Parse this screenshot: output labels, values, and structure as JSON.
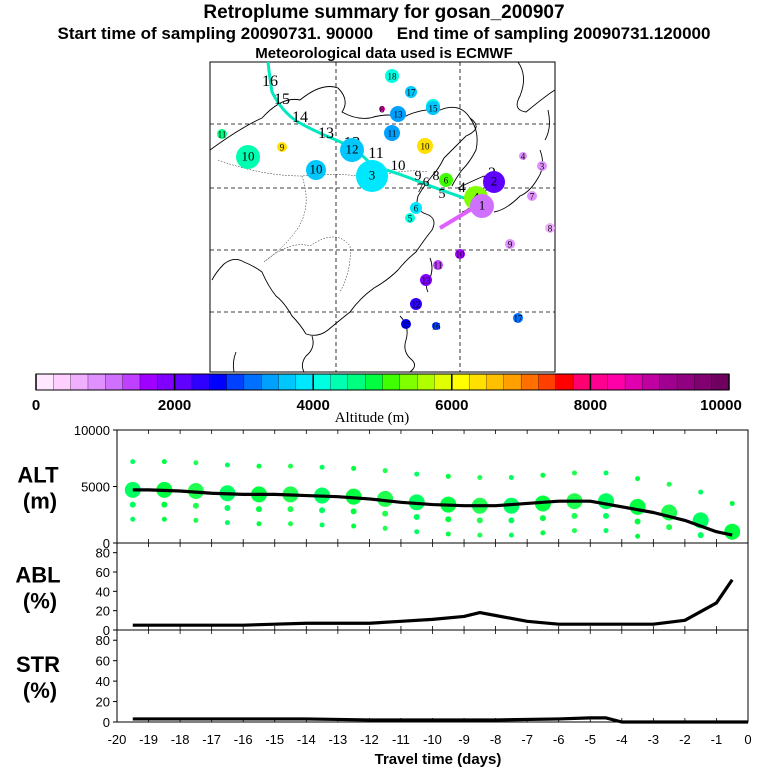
{
  "header": {
    "title": "Retroplume summary for gosan_200907",
    "line2_start": "Start time of sampling 20090731. 90000",
    "line2_end": "End time of sampling 20090731.120000",
    "line3": "Meteorological data used is ECMWF"
  },
  "colorbar": {
    "label": "Altitude (m)",
    "ticks": [
      "0",
      "2000",
      "4000",
      "6000",
      "8000",
      "10000"
    ],
    "colors": [
      "#ffe8ff",
      "#ffd0ff",
      "#f0b0ff",
      "#e090ff",
      "#d070ff",
      "#c040ff",
      "#a000ff",
      "#8000ff",
      "#6000ff",
      "#3000ff",
      "#0000ff",
      "#0040ff",
      "#0070ff",
      "#00a0ff",
      "#00c8ff",
      "#00e8ff",
      "#00ffe0",
      "#00ffb0",
      "#00ff80",
      "#00ff40",
      "#40ff00",
      "#80ff00",
      "#b0ff00",
      "#e0ff00",
      "#ffff00",
      "#ffe000",
      "#ffc000",
      "#ffa000",
      "#ff7000",
      "#ff4000",
      "#ff0000",
      "#ff0070",
      "#ff0090",
      "#ff00a8",
      "#e000b0",
      "#c000a0",
      "#a00090",
      "#900080",
      "#800070",
      "#700060"
    ]
  },
  "map": {
    "trajectory_labels": [
      "1",
      "2",
      "3",
      "4",
      "5",
      "6",
      "7",
      "8",
      "9",
      "10",
      "11",
      "12",
      "13",
      "14",
      "15",
      "16"
    ],
    "clusters": [
      {
        "label": "16",
        "altitude": 4200
      },
      {
        "label": "18",
        "altitude": 4000
      },
      {
        "label": "17",
        "altitude": 3600
      },
      {
        "label": "15",
        "altitude": 3500
      },
      {
        "label": "13",
        "altitude": 3300
      },
      {
        "label": "8",
        "altitude": 8500
      },
      {
        "label": "11",
        "altitude": 3400
      },
      {
        "label": "10",
        "altitude": 6300
      },
      {
        "label": "9",
        "altitude": 6400
      },
      {
        "label": "11",
        "altitude": 4500
      },
      {
        "label": "10",
        "altitude": 3500
      },
      {
        "label": "12",
        "altitude": 3700
      },
      {
        "label": "10",
        "altitude": 4400
      },
      {
        "label": "3",
        "altitude": 3800
      },
      {
        "label": "6",
        "altitude": 5200
      },
      {
        "label": "6",
        "altitude": 3900
      },
      {
        "label": "5",
        "altitude": 4200
      },
      {
        "label": "4",
        "altitude": 5400
      },
      {
        "label": "2",
        "altitude": 2000
      },
      {
        "label": "1",
        "altitude": 1200
      },
      {
        "label": "4",
        "altitude": 900
      },
      {
        "label": "3",
        "altitude": 800
      },
      {
        "label": "7",
        "altitude": 800
      },
      {
        "label": "9",
        "altitude": 800
      },
      {
        "label": "8",
        "altitude": 600
      },
      {
        "label": "10",
        "altitude": 1500
      },
      {
        "label": "11",
        "altitude": 1400
      },
      {
        "label": "13",
        "altitude": 1800
      },
      {
        "label": "12",
        "altitude": 2300
      },
      {
        "label": "15",
        "altitude": 2700
      },
      {
        "label": "16",
        "altitude": 2900
      },
      {
        "label": "17",
        "altitude": 3100
      }
    ]
  },
  "chart_data": [
    {
      "type": "line",
      "panel": "ALT",
      "ylabel": "ALT\n(m)",
      "ylim": [
        0,
        10000
      ],
      "yticks": [
        "10000",
        "5000",
        "0"
      ],
      "x": [
        -19.5,
        -19,
        -18,
        -17,
        -16,
        -15,
        -14,
        -13,
        -12,
        -11,
        -10,
        -9,
        -8,
        -7,
        -6,
        -5,
        -4,
        -3,
        -2,
        -1,
        -0.5
      ],
      "series": [
        {
          "name": "mean altitude",
          "values": [
            4700,
            4700,
            4600,
            4400,
            4300,
            4300,
            4200,
            4100,
            3900,
            3600,
            3400,
            3300,
            3300,
            3500,
            3700,
            3700,
            3200,
            2700,
            2000,
            1000,
            700
          ]
        }
      ]
    },
    {
      "type": "line",
      "panel": "ABL",
      "ylabel": "ABL\n(%)",
      "ylim": [
        0,
        90
      ],
      "yticks": [
        "80",
        "60",
        "40",
        "20",
        "0"
      ],
      "x": [
        -19.5,
        -19,
        -18,
        -17,
        -16,
        -15,
        -14,
        -13,
        -12,
        -11,
        -10,
        -9,
        -8.5,
        -8,
        -7,
        -6,
        -5,
        -4,
        -3,
        -2,
        -1,
        -0.5
      ],
      "series": [
        {
          "name": "ABL fraction",
          "values": [
            5,
            5,
            5,
            5,
            5,
            6,
            7,
            7,
            7,
            9,
            11,
            14,
            18,
            15,
            9,
            6,
            6,
            6,
            6,
            10,
            28,
            52
          ]
        }
      ]
    },
    {
      "type": "line",
      "panel": "STR",
      "ylabel": "STR\n(%)",
      "ylim": [
        0,
        90
      ],
      "yticks": [
        "80",
        "60",
        "40",
        "20",
        "0"
      ],
      "xlabel": "Travel time (days)",
      "xticks": [
        "-20",
        "-19",
        "-18",
        "-17",
        "-16",
        "-15",
        "-14",
        "-13",
        "-12",
        "-11",
        "-10",
        "-9",
        "-8",
        "-7",
        "-6",
        "-5",
        "-4",
        "-3",
        "-2",
        "-1",
        "0"
      ],
      "x": [
        -19.5,
        -18,
        -16,
        -14,
        -12,
        -10,
        -8,
        -6,
        -5,
        -4.5,
        -4,
        -3,
        -1,
        0
      ],
      "series": [
        {
          "name": "STR fraction",
          "values": [
            3,
            3,
            3,
            3,
            2,
            2,
            2,
            3,
            4,
            4,
            0,
            0,
            0,
            0
          ]
        }
      ]
    }
  ]
}
